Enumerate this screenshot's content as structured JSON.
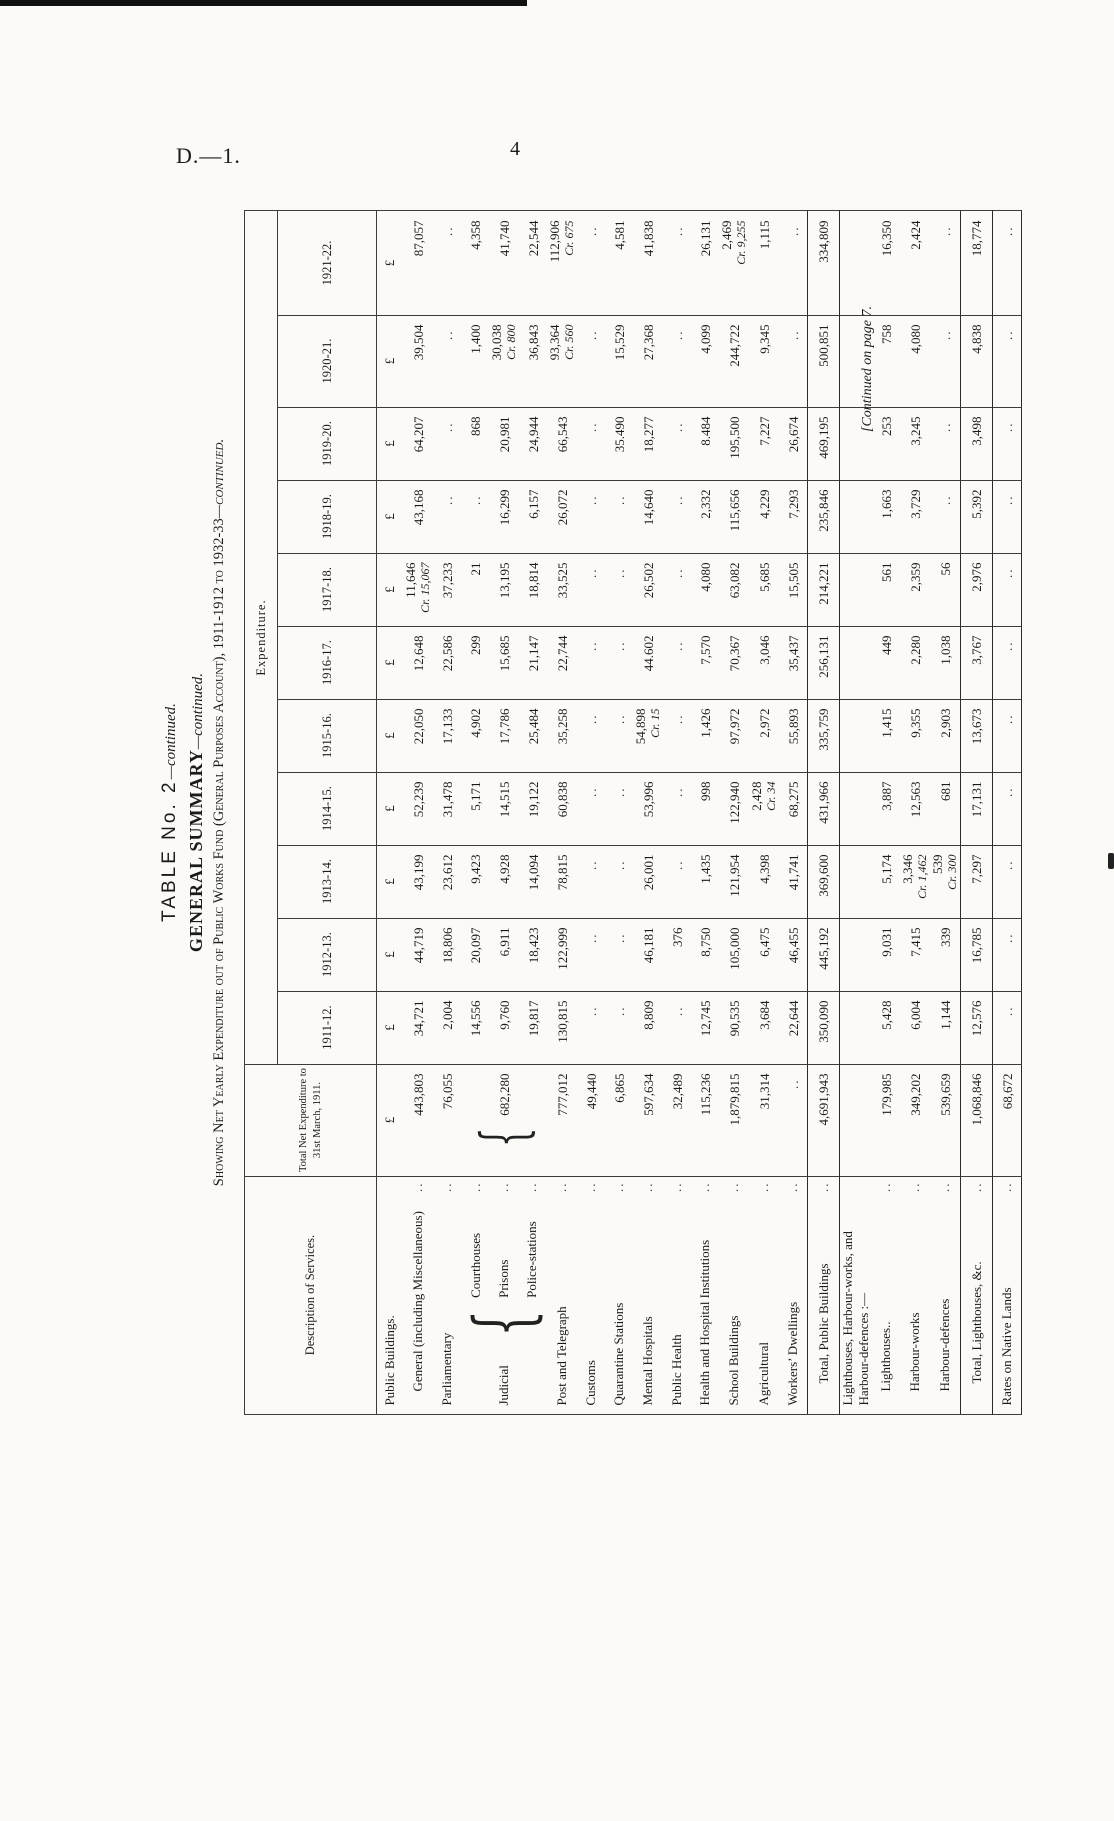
{
  "page": {
    "doc_ref": "D.—1.",
    "page_number": "4",
    "continued_note": "[Continued on page 7."
  },
  "title": {
    "line1": "TABLE No. 2",
    "line1_suffix": "—continued.",
    "line2": "GENERAL SUMMARY",
    "line2_suffix": "—continued.",
    "line3": "Showing Net Yearly Expenditure out of Public Works Fund (General Purposes Account), 1911-1912 to 1932-33",
    "line3_suffix": "—continued."
  },
  "config": {
    "currency": "£",
    "blank": "..",
    "leader": ".."
  },
  "table": {
    "col_headers": {
      "description": "Description of Services.",
      "total": "Total Net Expenditure to 31st March, 1911.",
      "expenditure": "Expenditure.",
      "years": [
        "1911-12.",
        "1912-13.",
        "1913-14.",
        "1914-15.",
        "1915-16.",
        "1916-17.",
        "1917-18.",
        "1918-19.",
        "1919-20.",
        "1920-21.",
        "1921-22."
      ]
    },
    "rows": [
      {
        "type": "heading",
        "label": "Public Buildings.",
        "currency": true
      },
      {
        "type": "data",
        "label": "General (including Miscellaneous)",
        "indent": 1,
        "cells": [
          "443,803",
          "34,721",
          "44,719",
          "43,199",
          "52,239",
          "22,050",
          "12,648",
          "11,646\nCr. 15,067",
          "43,168",
          "64,207",
          "39,504",
          "87,057"
        ]
      },
      {
        "type": "data",
        "label": "Parliamentary",
        "indent": 0,
        "cells": [
          "76,055",
          "2,004",
          "18,806",
          "23,612",
          "31,478",
          "17,133",
          "22,586",
          "37,233",
          "..",
          "..",
          "..",
          ".."
        ]
      },
      {
        "type": "group",
        "label": "Judicial",
        "total_value": "682,280",
        "sub_rows": [
          {
            "label": "Courthouses",
            "cells": [
              "14,556",
              "20,097",
              "9,423",
              "5,171",
              "4,902",
              "299",
              "21",
              "..",
              "868",
              "1,400",
              "4,358"
            ]
          },
          {
            "label": "Prisons",
            "cells": [
              "9,760",
              "6,911",
              "4,928",
              "14,515",
              "17,786",
              "15,685",
              "13,195",
              "16,299",
              "20,981",
              "30,038\nCr. 800",
              "41,740"
            ]
          },
          {
            "label": "Police-stations",
            "cells": [
              "19,817",
              "18,423",
              "14,094",
              "19,122",
              "25,484",
              "21,147",
              "18,814",
              "6,157",
              "24,944",
              "36,843",
              "22,544"
            ]
          }
        ]
      },
      {
        "type": "data",
        "label": "Post and Telegraph",
        "indent": 0,
        "cells": [
          "777,012",
          "130,815",
          "122,999",
          "78,815",
          "60,838",
          "35,258",
          "22,744",
          "33,525",
          "26,072",
          "66,543",
          "93,364\nCr. 560",
          "112,906\nCr. 675"
        ]
      },
      {
        "type": "data",
        "label": "Customs",
        "indent": 0,
        "cells": [
          "49,440",
          "..",
          "..",
          "..",
          "..",
          "..",
          "..",
          "..",
          "..",
          "..",
          "..",
          ".."
        ]
      },
      {
        "type": "data",
        "label": "Quarantine Stations",
        "indent": 0,
        "cells": [
          "6,865",
          "..",
          "..",
          "..",
          "..",
          "..",
          "..",
          "..",
          "..",
          "35.490",
          "15,529",
          "4,581"
        ]
      },
      {
        "type": "data",
        "label": "Mental Hospitals",
        "indent": 0,
        "cells": [
          "597,634",
          "8,809",
          "46,181",
          "26,001",
          "53,996",
          "54,898\nCr. 15",
          "44.602",
          "26,502",
          "14,640",
          "18,277",
          "27,368",
          "41,838"
        ]
      },
      {
        "type": "data",
        "label": "Public Health",
        "indent": 0,
        "cells": [
          "32,489",
          "..",
          "376",
          "..",
          "..",
          "..",
          "..",
          "..",
          "..",
          "..",
          "..",
          ".."
        ]
      },
      {
        "type": "data",
        "label": "Health and Hospital Institutions",
        "indent": 0,
        "cells": [
          "115,236",
          "12,745",
          "8,750",
          "1,435",
          "998",
          "1,426",
          "7,570",
          "4,080",
          "2,332",
          "8.484",
          "4,099",
          "26,131"
        ]
      },
      {
        "type": "data",
        "label": "School Buildings",
        "indent": 0,
        "cells": [
          "1,879,815",
          "90,535",
          "105,000",
          "121,954",
          "122,940",
          "97,972",
          "70,367",
          "63,082",
          "115,656",
          "195,500",
          "244,722",
          "2,469\nCr. 9,255"
        ]
      },
      {
        "type": "data",
        "label": "Agricultural",
        "indent": 0,
        "cells": [
          "31,314",
          "3,684",
          "6,475",
          "4,398",
          "2,428\nCr. 34",
          "2,972",
          "3,046",
          "5,685",
          "4,229",
          "7,227",
          "9,345",
          "1,115"
        ]
      },
      {
        "type": "data",
        "label": "Workers’ Dwellings",
        "indent": 0,
        "cells": [
          "..",
          "22,644",
          "46,455",
          "41,741",
          "68,275",
          "55,893",
          "35,437",
          "15,505",
          "7,293",
          "26,674",
          "..",
          ".."
        ]
      },
      {
        "type": "total",
        "label": "Total, Public Buildings",
        "cells": [
          "4,691,943",
          "350,090",
          "445,192",
          "369,600",
          "431,966",
          "335,759",
          "256,131",
          "214,221",
          "235,846",
          "469,195",
          "500,851",
          "334,809"
        ]
      },
      {
        "type": "heading",
        "label": "Lighthouses, Harbour-works, and Harbour-defences :—"
      },
      {
        "type": "data",
        "label": "Lighthouses..",
        "indent": 1,
        "cells": [
          "179,985",
          "5,428",
          "9,031",
          "5,174",
          "3,887",
          "1,415",
          "449",
          "561",
          "1,663",
          "253",
          "758",
          "16,350"
        ]
      },
      {
        "type": "data",
        "label": "Harbour-works",
        "indent": 1,
        "cells": [
          "349,202",
          "6,004",
          "7,415",
          "3,346\nCr. 1,462",
          "12,563",
          "9,355",
          "2,280",
          "2,359",
          "3,729",
          "3,245",
          "4,080",
          "2,424"
        ]
      },
      {
        "type": "data",
        "label": "Harbour-defences",
        "indent": 1,
        "cells": [
          "539,659",
          "1,144",
          "339",
          "539\nCr. 300",
          "681",
          "2,903",
          "1,038",
          "56",
          "..",
          "..",
          "..",
          ".."
        ]
      },
      {
        "type": "total",
        "label": "Total, Lighthouses, &c.",
        "cells": [
          "1,068,846",
          "12,576",
          "16,785",
          "7,297",
          "17,131",
          "13,673",
          "3,767",
          "2,976",
          "5,392",
          "3,498",
          "4,838",
          "18,774"
        ]
      },
      {
        "type": "data",
        "label": "Rates on Native Lands",
        "indent": 0,
        "cells": [
          "68,672",
          "..",
          "..",
          "..",
          "..",
          "..",
          "..",
          "..",
          "..",
          "..",
          "..",
          ".."
        ]
      }
    ]
  }
}
